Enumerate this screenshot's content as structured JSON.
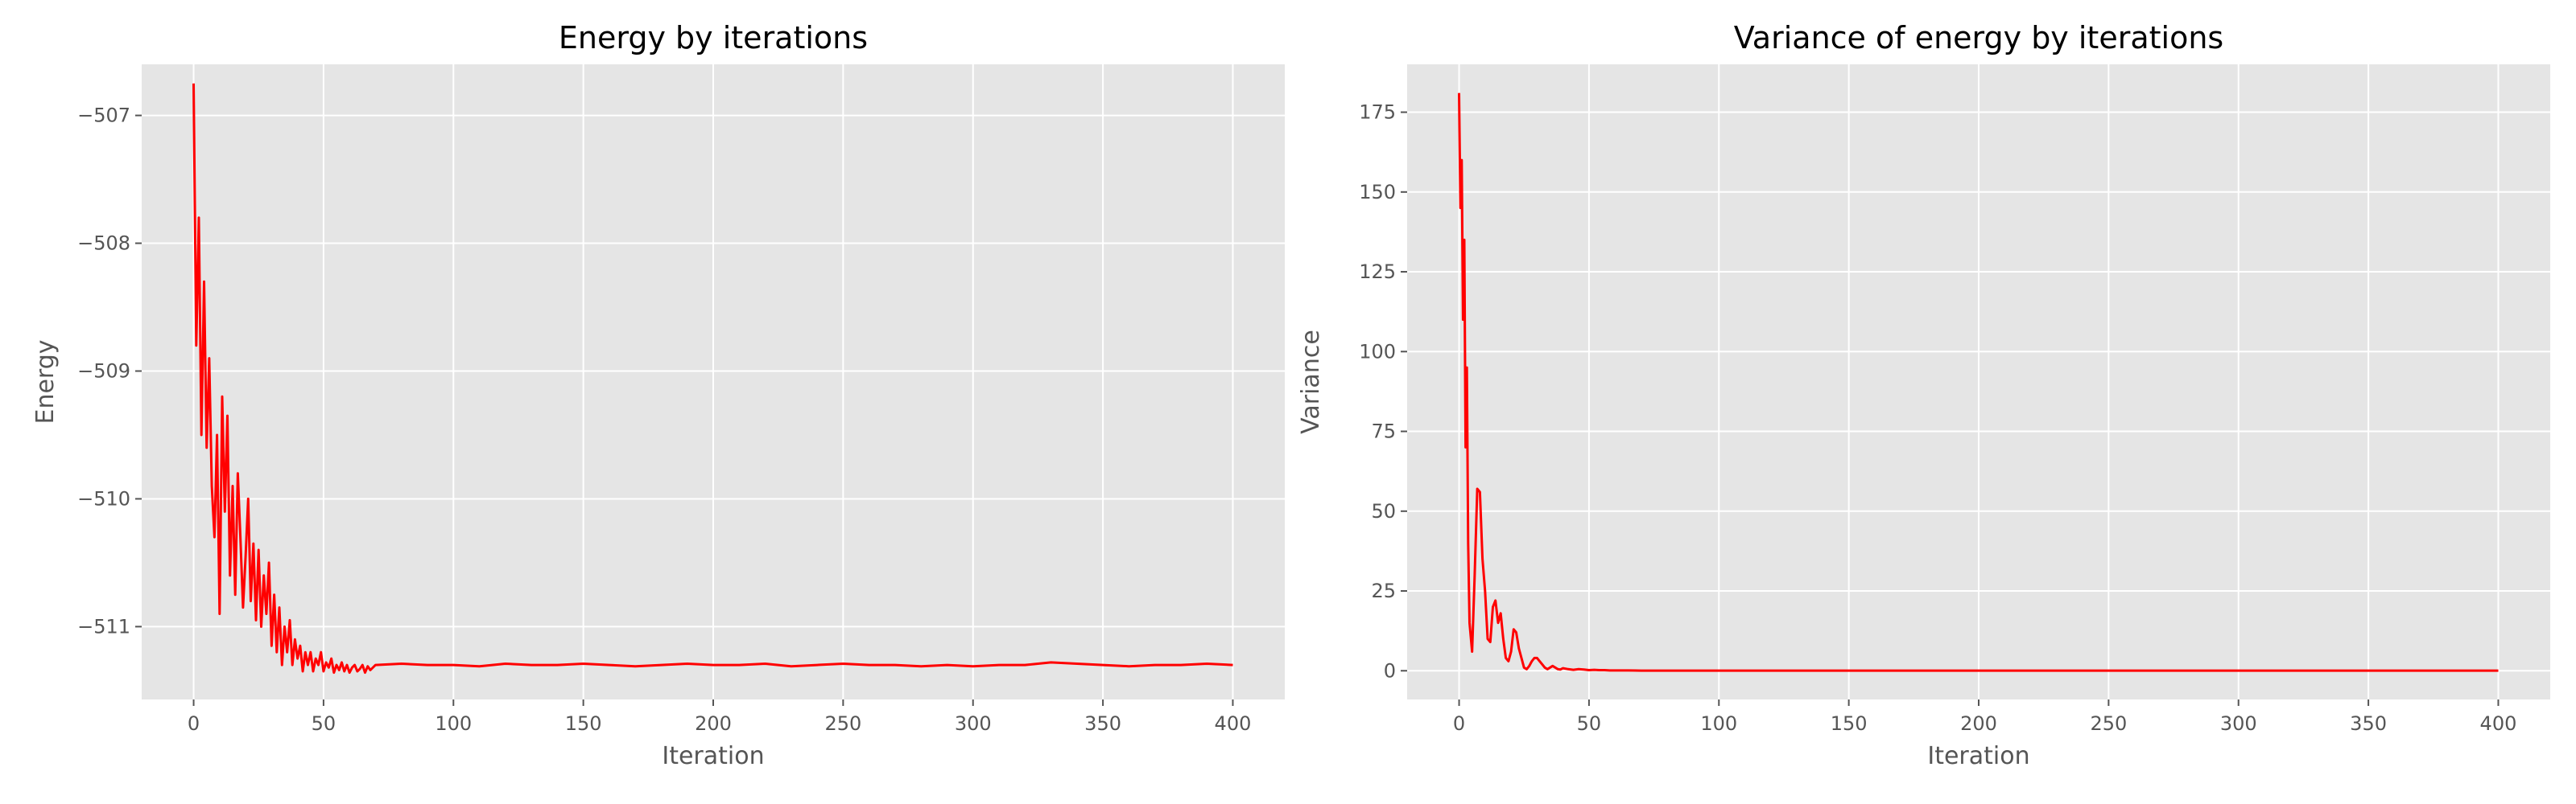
{
  "colors": {
    "plot_background": "#e5e5e5",
    "grid": "#ffffff",
    "series": "#ff0000",
    "tick": "#555555"
  },
  "chart_data": [
    {
      "type": "line",
      "title": "Energy by iterations",
      "xlabel": "Iteration",
      "ylabel": "Energy",
      "xlim": [
        -20,
        420
      ],
      "ylim": [
        -511.57,
        -506.6
      ],
      "grid": true,
      "xticks": [
        0,
        50,
        100,
        150,
        200,
        250,
        300,
        350,
        400
      ],
      "xtick_labels": [
        "0",
        "50",
        "100",
        "150",
        "200",
        "250",
        "300",
        "350",
        "400"
      ],
      "yticks": [
        -511,
        -510,
        -509,
        -508,
        -507
      ],
      "ytick_labels": [
        "−511",
        "−510",
        "−509",
        "−508",
        "−507"
      ],
      "series": [
        {
          "color": "#ff0000",
          "x": [
            0,
            1,
            2,
            3,
            4,
            5,
            6,
            7,
            8,
            9,
            10,
            11,
            12,
            13,
            14,
            15,
            16,
            17,
            18,
            19,
            20,
            21,
            22,
            23,
            24,
            25,
            26,
            27,
            28,
            29,
            30,
            31,
            32,
            33,
            34,
            35,
            36,
            37,
            38,
            39,
            40,
            41,
            42,
            43,
            44,
            45,
            46,
            47,
            48,
            49,
            50,
            51,
            52,
            53,
            54,
            55,
            56,
            57,
            58,
            59,
            60,
            61,
            62,
            63,
            64,
            65,
            66,
            67,
            68,
            69,
            70,
            80,
            90,
            100,
            110,
            120,
            130,
            140,
            150,
            160,
            170,
            180,
            190,
            200,
            210,
            220,
            230,
            240,
            250,
            260,
            270,
            280,
            290,
            300,
            310,
            320,
            330,
            340,
            350,
            360,
            370,
            380,
            390,
            400
          ],
          "y": [
            -506.75,
            -508.8,
            -507.8,
            -509.5,
            -508.3,
            -509.6,
            -508.9,
            -509.9,
            -510.3,
            -509.5,
            -510.9,
            -509.2,
            -510.1,
            -509.35,
            -510.6,
            -509.9,
            -510.75,
            -509.8,
            -510.3,
            -510.85,
            -510.45,
            -510.0,
            -510.8,
            -510.35,
            -510.95,
            -510.4,
            -511.0,
            -510.6,
            -510.9,
            -510.5,
            -511.15,
            -510.75,
            -511.2,
            -510.85,
            -511.3,
            -511.0,
            -511.2,
            -510.95,
            -511.3,
            -511.1,
            -511.25,
            -511.15,
            -511.35,
            -511.2,
            -511.3,
            -511.2,
            -511.35,
            -511.25,
            -511.3,
            -511.2,
            -511.35,
            -511.28,
            -511.32,
            -511.25,
            -511.36,
            -511.3,
            -511.34,
            -511.28,
            -511.35,
            -511.3,
            -511.36,
            -511.32,
            -511.3,
            -511.35,
            -511.33,
            -511.3,
            -511.36,
            -511.31,
            -511.34,
            -511.32,
            -511.3,
            -511.29,
            -511.3,
            -511.3,
            -511.31,
            -511.29,
            -511.3,
            -511.3,
            -511.29,
            -511.3,
            -511.31,
            -511.3,
            -511.29,
            -511.3,
            -511.3,
            -511.29,
            -511.31,
            -511.3,
            -511.29,
            -511.3,
            -511.3,
            -511.31,
            -511.3,
            -511.31,
            -511.3,
            -511.3,
            -511.28,
            -511.29,
            -511.3,
            -511.31,
            -511.3,
            -511.3,
            -511.29,
            -511.3
          ]
        }
      ]
    },
    {
      "type": "line",
      "title": "Variance of energy by iterations",
      "xlabel": "Iteration",
      "ylabel": "Variance",
      "xlim": [
        -20,
        420
      ],
      "ylim": [
        -9,
        190
      ],
      "grid": true,
      "xticks": [
        0,
        50,
        100,
        150,
        200,
        250,
        300,
        350,
        400
      ],
      "xtick_labels": [
        "0",
        "50",
        "100",
        "150",
        "200",
        "250",
        "300",
        "350",
        "400"
      ],
      "yticks": [
        0,
        25,
        50,
        75,
        100,
        125,
        150,
        175
      ],
      "ytick_labels": [
        "0",
        "25",
        "50",
        "75",
        "100",
        "125",
        "150",
        "175"
      ],
      "series": [
        {
          "color": "#ff0000",
          "x": [
            0,
            0.5,
            1,
            1.5,
            2,
            2.5,
            3,
            3.5,
            4,
            5,
            6,
            7,
            8,
            9,
            10,
            11,
            12,
            13,
            14,
            15,
            16,
            17,
            18,
            19,
            20,
            21,
            22,
            23,
            24,
            25,
            26,
            27,
            28,
            29,
            30,
            31,
            32,
            33,
            34,
            35,
            36,
            37,
            38,
            39,
            40,
            42,
            44,
            46,
            48,
            50,
            52,
            54,
            56,
            58,
            60,
            65,
            70,
            80,
            100,
            150,
            200,
            250,
            300,
            350,
            400
          ],
          "y": [
            181,
            145,
            160,
            110,
            135,
            70,
            95,
            40,
            15,
            6,
            30,
            57,
            56,
            35,
            25,
            10,
            9,
            20,
            22,
            15,
            18,
            10,
            4,
            3,
            6,
            13,
            12,
            7,
            4,
            1,
            0.5,
            1.5,
            3,
            4,
            4,
            3,
            2,
            1,
            0.5,
            1,
            1.5,
            1,
            0.5,
            0.4,
            0.8,
            0.5,
            0.3,
            0.5,
            0.4,
            0.2,
            0.3,
            0.2,
            0.2,
            0.1,
            0.1,
            0.1,
            0.05,
            0.05,
            0.05,
            0.05,
            0.05,
            0.05,
            0.05,
            0.05,
            0.05
          ]
        }
      ]
    }
  ]
}
